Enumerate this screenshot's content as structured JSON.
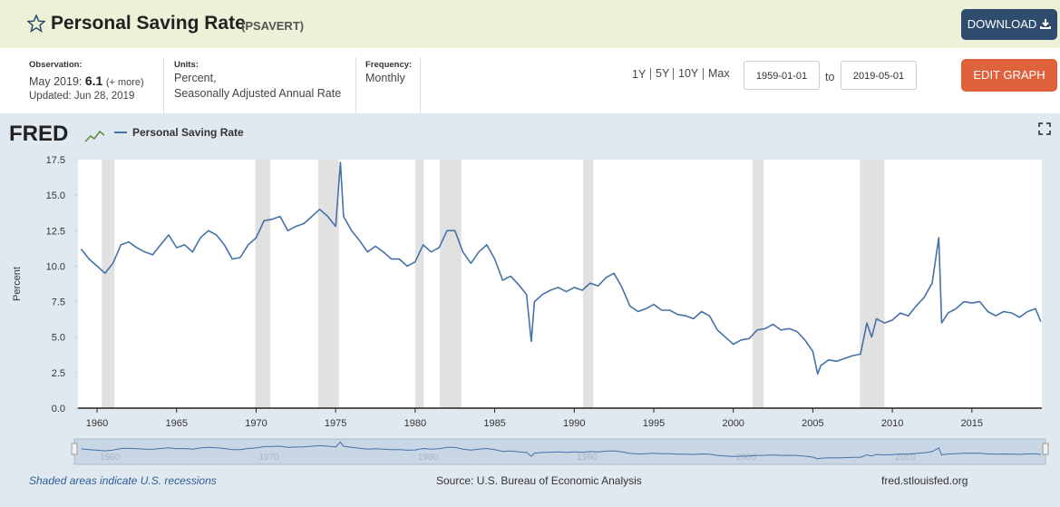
{
  "header": {
    "title": "Personal Saving Rate",
    "series_id": "(PSAVERT)",
    "download": "DOWNLOAD"
  },
  "info": {
    "observation_label": "Observation:",
    "observation_period": "May 2019:",
    "observation_value": 6.1,
    "more": "(+ more)",
    "updated": "Updated: Jun 28, 2019",
    "units_label": "Units:",
    "units_1": "Percent,",
    "units_2": "Seasonally Adjusted Annual Rate",
    "frequency_label": "Frequency:",
    "frequency": "Monthly"
  },
  "controls": {
    "ranges": [
      "1Y",
      "5Y",
      "10Y",
      "Max"
    ],
    "start_date": "1959-01-01",
    "to": "to",
    "end_date": "2019-05-01",
    "edit_graph": "EDIT GRAPH"
  },
  "footer": {
    "recession_note": "Shaded areas indicate U.S. recessions",
    "source": "Source: U.S. Bureau of Economic Analysis",
    "site": "fred.stlouisfed.org"
  },
  "chart_data": {
    "type": "line",
    "logo": "FRED",
    "ylabel": "Percent",
    "x": [
      1959,
      1959.5,
      1960,
      1960.5,
      1961,
      1961.5,
      1962,
      1962.5,
      1963,
      1963.5,
      1964,
      1964.5,
      1965,
      1965.5,
      1966,
      1966.5,
      1967,
      1967.5,
      1968,
      1968.5,
      1969,
      1969.5,
      1970,
      1970.5,
      1971,
      1971.5,
      1972,
      1972.5,
      1973,
      1973.5,
      1974,
      1974.5,
      1975,
      1975.3,
      1975.5,
      1976,
      1976.5,
      1977,
      1977.5,
      1978,
      1978.5,
      1979,
      1979.5,
      1980,
      1980.5,
      1981,
      1981.5,
      1982,
      1982.5,
      1983,
      1983.5,
      1984,
      1984.5,
      1985,
      1985.5,
      1986,
      1986.5,
      1987,
      1987.3,
      1987.5,
      1988,
      1988.5,
      1989,
      1989.5,
      1990,
      1990.5,
      1991,
      1991.5,
      1992,
      1992.5,
      1993,
      1993.5,
      1994,
      1994.5,
      1995,
      1995.5,
      1996,
      1996.5,
      1997,
      1997.5,
      1998,
      1998.5,
      1999,
      1999.5,
      2000,
      2000.5,
      2001,
      2001.5,
      2002,
      2002.5,
      2003,
      2003.5,
      2004,
      2004.5,
      2005,
      2005.3,
      2005.5,
      2006,
      2006.5,
      2007,
      2007.5,
      2008,
      2008.4,
      2008.7,
      2009,
      2009.5,
      2010,
      2010.5,
      2011,
      2011.5,
      2012,
      2012.5,
      2012.92,
      2013.1,
      2013.5,
      2014,
      2014.5,
      2015,
      2015.5,
      2016,
      2016.5,
      2017,
      2017.5,
      2018,
      2018.5,
      2019,
      2019.33
    ],
    "series": [
      {
        "name": "Personal Saving Rate",
        "color": "#4572a7",
        "values": [
          11.2,
          10.5,
          10.0,
          9.5,
          10.2,
          11.5,
          11.7,
          11.3,
          11.0,
          10.8,
          11.5,
          12.2,
          11.3,
          11.5,
          11.0,
          12.0,
          12.5,
          12.2,
          11.5,
          10.5,
          10.6,
          11.5,
          12.0,
          13.2,
          13.3,
          13.5,
          12.5,
          12.8,
          13.0,
          13.5,
          14.0,
          13.5,
          12.8,
          17.3,
          13.5,
          12.5,
          11.8,
          11.0,
          11.4,
          11.0,
          10.5,
          10.5,
          10.0,
          10.3,
          11.5,
          11.0,
          11.3,
          12.5,
          12.5,
          11.0,
          10.2,
          11.0,
          11.5,
          10.5,
          9.0,
          9.3,
          8.7,
          8.0,
          4.7,
          7.5,
          8.0,
          8.3,
          8.5,
          8.2,
          8.5,
          8.3,
          8.8,
          8.6,
          9.2,
          9.5,
          8.5,
          7.2,
          6.8,
          7.0,
          7.3,
          6.9,
          6.9,
          6.6,
          6.5,
          6.3,
          6.8,
          6.5,
          5.5,
          5.0,
          4.5,
          4.8,
          4.9,
          5.5,
          5.6,
          5.9,
          5.5,
          5.6,
          5.4,
          4.8,
          4.0,
          2.4,
          3.0,
          3.4,
          3.3,
          3.5,
          3.7,
          3.8,
          6.0,
          5.0,
          6.3,
          6.0,
          6.2,
          6.7,
          6.5,
          7.2,
          7.8,
          8.8,
          12.0,
          6.0,
          6.7,
          7.0,
          7.5,
          7.4,
          7.5,
          6.8,
          6.5,
          6.8,
          6.7,
          6.4,
          6.8,
          7.0,
          6.1
        ]
      }
    ],
    "recessions": [
      [
        1960.3,
        1961.1
      ],
      [
        1969.95,
        1970.9
      ],
      [
        1973.9,
        1975.2
      ],
      [
        1980.0,
        1980.55
      ],
      [
        1981.55,
        1982.9
      ],
      [
        1990.55,
        1991.2
      ],
      [
        2001.2,
        2001.9
      ],
      [
        2007.95,
        2009.5
      ]
    ],
    "recession_color": "#e1e1e1",
    "xlim": [
      1958.8,
      2019.4
    ],
    "xticks": [
      1960,
      1965,
      1970,
      1975,
      1980,
      1985,
      1990,
      1995,
      2000,
      2005,
      2010,
      2015
    ],
    "ylim": [
      0,
      17.5
    ],
    "yticks": [
      {
        "value": 0,
        "label": "0.0"
      },
      2.5,
      {
        "value": 5,
        "label": "5.0"
      },
      7.5,
      {
        "value": 10,
        "label": "10.0"
      },
      12.5,
      {
        "value": 15,
        "label": "15.0"
      },
      17.5
    ],
    "grid": false,
    "navigator_ticks": [
      1960,
      1970,
      1980,
      1990,
      2000,
      2010
    ]
  }
}
